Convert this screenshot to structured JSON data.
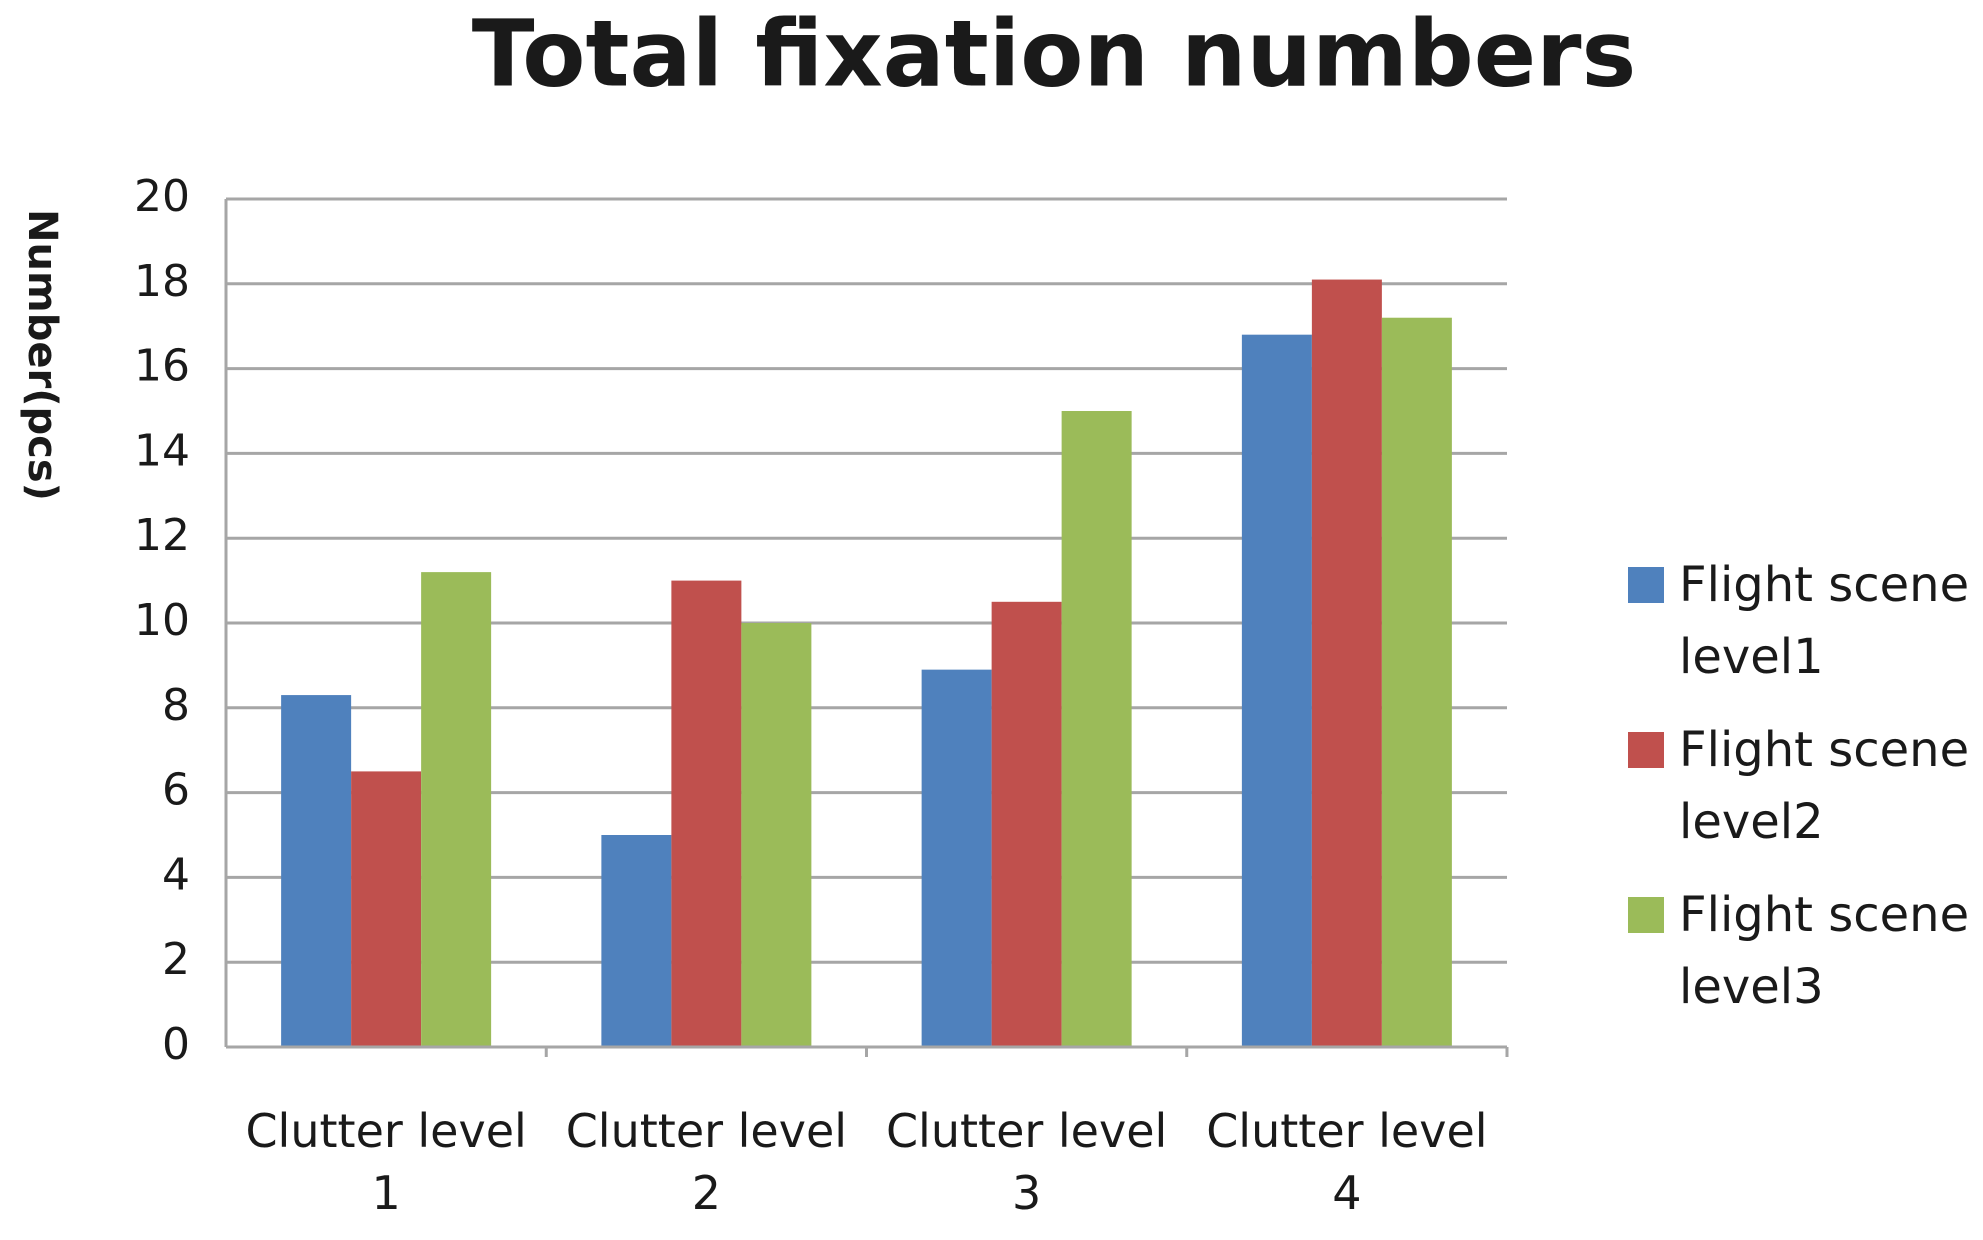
{
  "chart_data": {
    "type": "bar",
    "title": "Total fixation numbers",
    "y_label": "Number(pcs)",
    "categories": [
      "Clutter level 1",
      "Clutter level 2",
      "Clutter level 3",
      "Clutter level 4"
    ],
    "series": [
      {
        "name": "Flight scene level1",
        "color": "#4f81bd",
        "values": [
          8.3,
          5.0,
          8.9,
          16.8
        ]
      },
      {
        "name": "Flight scene level2",
        "color": "#c0504d",
        "values": [
          6.5,
          11.0,
          10.5,
          18.1
        ]
      },
      {
        "name": "Flight scene level3",
        "color": "#9bbb59",
        "values": [
          11.2,
          10.0,
          15.0,
          17.2
        ]
      }
    ],
    "ylim": [
      0,
      20
    ],
    "yticks": [
      0,
      2,
      4,
      6,
      8,
      10,
      12,
      14,
      16,
      18,
      20
    ],
    "grid": true,
    "legend": "right"
  }
}
